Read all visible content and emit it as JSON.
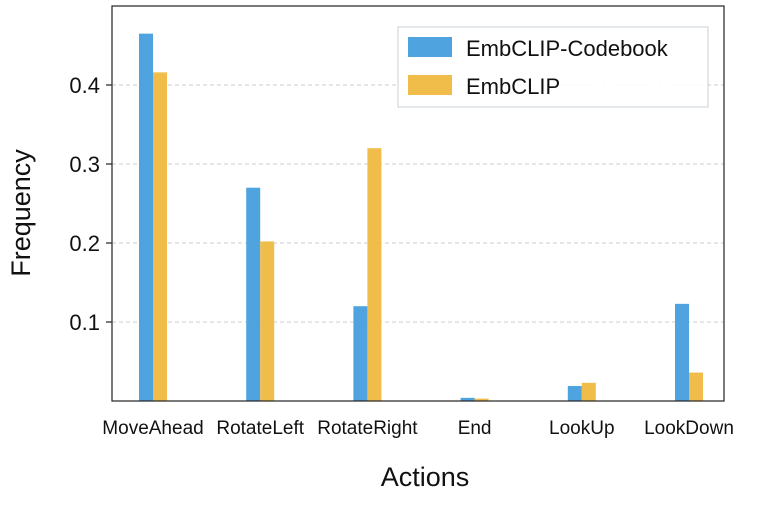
{
  "chart_data": {
    "type": "bar",
    "categories": [
      "MoveAhead",
      "RotateLeft",
      "RotateRight",
      "End",
      "LookUp",
      "LookDown"
    ],
    "series": [
      {
        "name": "EmbCLIP-Codebook",
        "values": [
          0.465,
          0.27,
          0.12,
          0.004,
          0.019,
          0.123
        ],
        "color": "#4fa3df"
      },
      {
        "name": "EmbCLIP",
        "values": [
          0.416,
          0.202,
          0.32,
          0.003,
          0.023,
          0.036
        ],
        "color": "#f0bd4b"
      }
    ],
    "xlabel": "Actions",
    "ylabel": "Frequency",
    "ylim": [
      0,
      0.5
    ],
    "yticks": [
      0.1,
      0.2,
      0.3,
      0.4
    ],
    "ytick_labels": [
      "0.1",
      "0.2",
      "0.3",
      "0.4"
    ],
    "grid": "horizontal dashed",
    "legend_position": "top-right"
  }
}
